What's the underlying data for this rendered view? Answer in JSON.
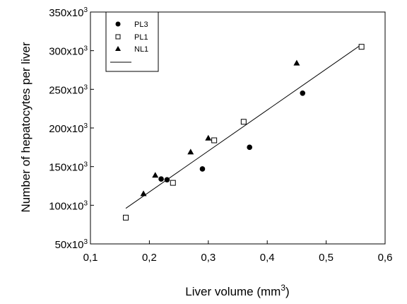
{
  "chart_data": {
    "type": "scatter",
    "xlabel": "Liver volume (mm",
    "xlabel_sup": "3",
    "xlabel_close": ")",
    "ylabel": "Number of hepatocytes per liver",
    "xlim": [
      0.1,
      0.6
    ],
    "ylim": [
      50000,
      350000
    ],
    "x_ticks": [
      {
        "value": 0.1,
        "label": "0,1"
      },
      {
        "value": 0.2,
        "label": "0,2"
      },
      {
        "value": 0.3,
        "label": "0,3"
      },
      {
        "value": 0.4,
        "label": "0,4"
      },
      {
        "value": 0.5,
        "label": "0,5"
      },
      {
        "value": 0.6,
        "label": "0,6"
      }
    ],
    "y_ticks": [
      {
        "value": 50000,
        "base": "50x10",
        "exp": "3"
      },
      {
        "value": 100000,
        "base": "100x10",
        "exp": "3"
      },
      {
        "value": 150000,
        "base": "150x10",
        "exp": "3"
      },
      {
        "value": 200000,
        "base": "200x10",
        "exp": "3"
      },
      {
        "value": 250000,
        "base": "250x10",
        "exp": "3"
      },
      {
        "value": 300000,
        "base": "300x10",
        "exp": "3"
      },
      {
        "value": 350000,
        "base": "350x10",
        "exp": "3"
      }
    ],
    "grid": false,
    "legend_position": "top-left",
    "series": [
      {
        "name": "PL3",
        "marker": "filled-circle",
        "points": [
          {
            "x": 0.22,
            "y": 134000
          },
          {
            "x": 0.23,
            "y": 133000
          },
          {
            "x": 0.29,
            "y": 147000
          },
          {
            "x": 0.37,
            "y": 175000
          },
          {
            "x": 0.46,
            "y": 245000
          }
        ]
      },
      {
        "name": "PL1",
        "marker": "open-square",
        "points": [
          {
            "x": 0.16,
            "y": 84000
          },
          {
            "x": 0.24,
            "y": 129000
          },
          {
            "x": 0.31,
            "y": 184000
          },
          {
            "x": 0.36,
            "y": 208000
          },
          {
            "x": 0.56,
            "y": 305000
          }
        ]
      },
      {
        "name": "NL1",
        "marker": "filled-triangle",
        "points": [
          {
            "x": 0.19,
            "y": 115000
          },
          {
            "x": 0.21,
            "y": 139000
          },
          {
            "x": 0.27,
            "y": 169000
          },
          {
            "x": 0.3,
            "y": 187000
          },
          {
            "x": 0.45,
            "y": 284000
          }
        ]
      }
    ],
    "fit_line": {
      "name": "",
      "x1": 0.16,
      "y1": 96000,
      "x2": 0.56,
      "y2": 308000
    }
  }
}
